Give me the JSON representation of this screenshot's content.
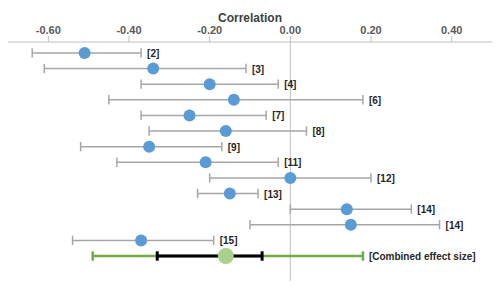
{
  "chart_data": {
    "type": "forest",
    "xlabel": "Correlation",
    "xlim": [
      -0.7,
      0.5
    ],
    "xticks": [
      {
        "value": -0.6,
        "label": "-0.60"
      },
      {
        "value": -0.4,
        "label": "-0.40"
      },
      {
        "value": -0.2,
        "label": "-0.20"
      },
      {
        "value": 0,
        "label": "0.00"
      },
      {
        "value": 0.2,
        "label": "0.20"
      },
      {
        "value": 0.4,
        "label": "0.40"
      }
    ],
    "grid": false,
    "tick_labels": "x",
    "reference_line": 0,
    "color": "#5b9bd5",
    "categories": [
      "[2]",
      "[3]",
      "[4]",
      "[6]",
      "[7]",
      "[8]",
      "[9]",
      "[11]",
      "[12]",
      "[13]",
      "[14]",
      "[14]",
      "[15]"
    ],
    "values": [
      -0.51,
      -0.34,
      -0.2,
      -0.14,
      -0.25,
      -0.16,
      -0.35,
      -0.21,
      0.0,
      -0.15,
      0.14,
      0.15,
      -0.37
    ],
    "ci_low": [
      -0.64,
      -0.61,
      -0.37,
      -0.45,
      -0.37,
      -0.35,
      -0.52,
      -0.43,
      -0.2,
      -0.23,
      0.0,
      -0.1,
      -0.54
    ],
    "ci_high": [
      -0.37,
      -0.11,
      -0.03,
      0.18,
      -0.06,
      0.04,
      -0.17,
      -0.03,
      0.2,
      -0.08,
      0.3,
      0.37,
      -0.19
    ],
    "combined": {
      "label": "[Combined effect size]",
      "value": -0.16,
      "ci": [
        -0.33,
        -0.07
      ],
      "pi": [
        -0.49,
        0.18
      ],
      "color": "#a9d18e"
    }
  }
}
